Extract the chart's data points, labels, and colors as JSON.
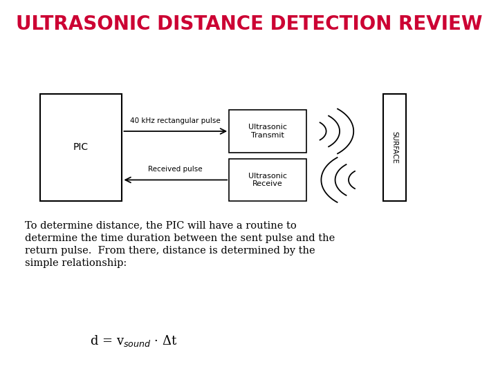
{
  "title": "ULTRASONIC DISTANCE DETECTION REVIEW",
  "title_bg": "#ffff99",
  "title_color": "#cc0033",
  "title_fontsize": 20,
  "bg_color": "#ffffff",
  "body_text": "To determine distance, the PIC will have a routine to\ndetermine the time duration between the sent pulse and the\nreturn pulse.  From there, distance is determined by the\nsimple relationship:",
  "formula": "d = v$_{sound}$ · Δt",
  "arrow_label_top": "40 kHz rectangular pulse",
  "arrow_label_bottom": "Received pulse",
  "tx_label": "Ultrasonic\nTransmit",
  "rx_label": "Ultrasonic\nReceive",
  "surface_label": "SURFACE"
}
